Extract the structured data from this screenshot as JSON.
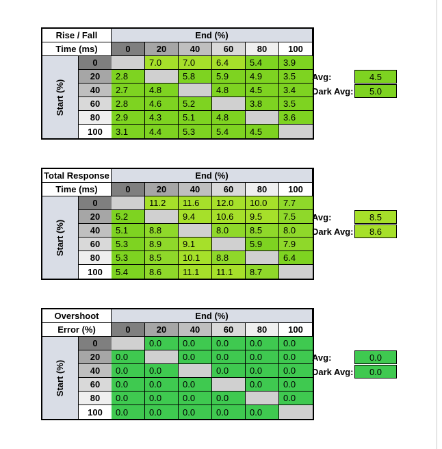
{
  "chart_data": [
    {
      "type": "table",
      "title": [
        "Rise / Fall",
        "Time (ms)"
      ],
      "column_header": "End (%)",
      "row_header": "Start (%)",
      "columns": [
        "0",
        "20",
        "40",
        "60",
        "80",
        "100"
      ],
      "rows": [
        "0",
        "20",
        "40",
        "60",
        "80",
        "100"
      ],
      "values": [
        [
          null,
          "7.0",
          "7.0",
          "6.4",
          "5.4",
          "3.9"
        ],
        [
          "2.8",
          null,
          "5.8",
          "5.9",
          "4.9",
          "3.5"
        ],
        [
          "2.7",
          "4.8",
          null,
          "4.8",
          "4.5",
          "3.4"
        ],
        [
          "2.8",
          "4.6",
          "5.2",
          null,
          "3.8",
          "3.5"
        ],
        [
          "2.9",
          "4.3",
          "5.1",
          "4.8",
          null,
          "3.6"
        ],
        [
          "3.1",
          "4.4",
          "5.3",
          "5.4",
          "4.5",
          null
        ]
      ],
      "avg_label": "Avg:",
      "avg": "4.5",
      "dark_avg_label": "Dark Avg:",
      "dark_avg": "5.0",
      "avg_color": "#7ed321",
      "dark_avg_color": "#7ed321"
    },
    {
      "type": "table",
      "title": [
        "Total Response",
        "Time (ms)"
      ],
      "column_header": "End (%)",
      "row_header": "Start (%)",
      "columns": [
        "0",
        "20",
        "40",
        "60",
        "80",
        "100"
      ],
      "rows": [
        "0",
        "20",
        "40",
        "60",
        "80",
        "100"
      ],
      "values": [
        [
          null,
          "11.2",
          "11.6",
          "12.0",
          "10.0",
          "7.7"
        ],
        [
          "5.2",
          null,
          "9.4",
          "10.6",
          "9.5",
          "7.5"
        ],
        [
          "5.1",
          "8.8",
          null,
          "8.0",
          "8.5",
          "8.0"
        ],
        [
          "5.3",
          "8.9",
          "9.1",
          null,
          "5.9",
          "7.9"
        ],
        [
          "5.3",
          "8.5",
          "10.1",
          "8.8",
          null,
          "6.4"
        ],
        [
          "5.4",
          "8.6",
          "11.1",
          "11.1",
          "8.7",
          null
        ]
      ],
      "avg_label": "Avg:",
      "avg": "8.5",
      "dark_avg_label": "Dark Avg:",
      "dark_avg": "8.6",
      "avg_color": "#a6e02a",
      "dark_avg_color": "#a6e02a"
    },
    {
      "type": "table",
      "title": [
        "Overshoot",
        "Error (%)"
      ],
      "column_header": "End (%)",
      "row_header": "Start (%)",
      "columns": [
        "0",
        "20",
        "40",
        "60",
        "80",
        "100"
      ],
      "rows": [
        "0",
        "20",
        "40",
        "60",
        "80",
        "100"
      ],
      "values": [
        [
          null,
          "0.0",
          "0.0",
          "0.0",
          "0.0",
          "0.0"
        ],
        [
          "0.0",
          null,
          "0.0",
          "0.0",
          "0.0",
          "0.0"
        ],
        [
          "0.0",
          "0.0",
          null,
          "0.0",
          "0.0",
          "0.0"
        ],
        [
          "0.0",
          "0.0",
          "0.0",
          null,
          "0.0",
          "0.0"
        ],
        [
          "0.0",
          "0.0",
          "0.0",
          "0.0",
          null,
          "0.0"
        ],
        [
          "0.0",
          "0.0",
          "0.0",
          "0.0",
          "0.0",
          null
        ]
      ],
      "avg_label": "Avg:",
      "avg": "0.0",
      "dark_avg_label": "Dark Avg:",
      "dark_avg": "0.0",
      "avg_color": "#3fc950",
      "dark_avg_color": "#3fc950"
    }
  ],
  "palette": {
    "green": "#3fc950",
    "green_light": "#7ed321",
    "yellow_green": "#a6e02a",
    "diagonal": "#d0d0d0",
    "header_blue_gray": "#d9dde6"
  }
}
